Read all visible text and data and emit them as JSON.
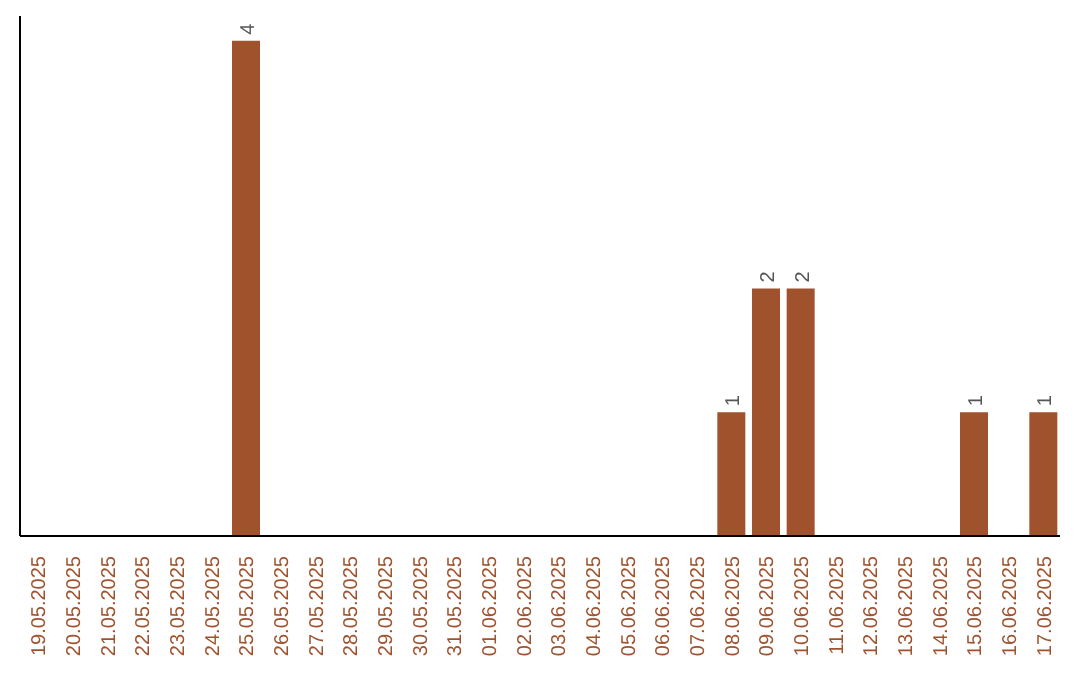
{
  "chart_data": {
    "type": "bar",
    "categories": [
      "19.05.2025",
      "20.05.2025",
      "21.05.2025",
      "22.05.2025",
      "23.05.2025",
      "24.05.2025",
      "25.05.2025",
      "26.05.2025",
      "27.05.2025",
      "28.05.2025",
      "29.05.2025",
      "30.05.2025",
      "31.05.2025",
      "01.06.2025",
      "02.06.2025",
      "03.06.2025",
      "04.06.2025",
      "05.06.2025",
      "06.06.2025",
      "07.06.2025",
      "08.06.2025",
      "09.06.2025",
      "10.06.2025",
      "11.06.2025",
      "12.06.2025",
      "13.06.2025",
      "14.06.2025",
      "15.06.2025",
      "16.06.2025",
      "17.06.2025"
    ],
    "values": [
      0,
      0,
      0,
      0,
      0,
      0,
      4,
      0,
      0,
      0,
      0,
      0,
      0,
      0,
      0,
      0,
      0,
      0,
      0,
      0,
      1,
      2,
      2,
      0,
      0,
      0,
      0,
      1,
      0,
      1
    ],
    "value_labels": [
      null,
      null,
      null,
      null,
      null,
      null,
      "4",
      null,
      null,
      null,
      null,
      null,
      null,
      null,
      null,
      null,
      null,
      null,
      null,
      null,
      "1",
      "2",
      "2",
      null,
      null,
      null,
      null,
      "1",
      null,
      "1"
    ],
    "color": "#a0522d",
    "tick_labels": "x"
  }
}
